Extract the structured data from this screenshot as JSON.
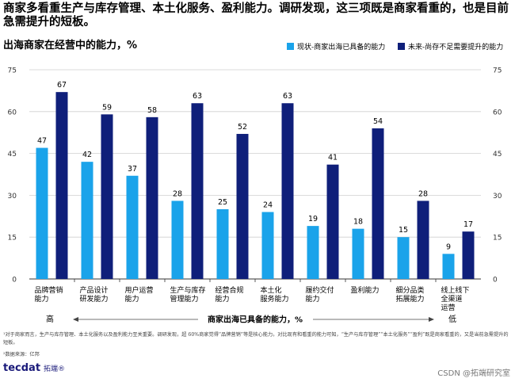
{
  "headline": "商家多看重生产与库存管理、本土化服务、盈利能力。调研发现，这三项既是商家看重的，也是目前急需提升的短板。",
  "subtitle": "出海商家在经营中的能力，%",
  "legend": {
    "current": "现状-商家出海已具备的能力",
    "future": "未来-尚存不足需要提升的能力"
  },
  "colors": {
    "current": "#1aa3ea",
    "future": "#0f1f7a",
    "grid": "#cfcfcf",
    "axis": "#333333"
  },
  "chart_data": {
    "type": "bar",
    "categories": [
      [
        "品牌营销",
        "能力"
      ],
      [
        "产品设计",
        "研发能力"
      ],
      [
        "用户运营",
        "能力"
      ],
      [
        "生产与库存",
        "管理能力"
      ],
      [
        "经营合规",
        "能力"
      ],
      [
        "本土化",
        "服务能力"
      ],
      [
        "履约交付",
        "能力"
      ],
      [
        "盈利能力"
      ],
      [
        "细分品类",
        "拓展能力"
      ],
      [
        "线上线下",
        "全渠道",
        "运营"
      ]
    ],
    "series": [
      {
        "name": "现状-商家出海已具备的能力",
        "key": "current",
        "values": [
          47,
          42,
          37,
          28,
          25,
          24,
          19,
          18,
          15,
          9
        ]
      },
      {
        "name": "未来-尚存不足需要提升的能力",
        "key": "future",
        "values": [
          67,
          59,
          58,
          63,
          52,
          63,
          41,
          54,
          28,
          17
        ]
      }
    ],
    "yticks": [
      0,
      15,
      30,
      45,
      60,
      75
    ],
    "ylim": [
      0,
      75
    ],
    "grid": true,
    "legend_position": "top-right",
    "xaxis_title": "商家出海已具备的能力，%",
    "xaxis_high": "高",
    "xaxis_low": "低"
  },
  "footnote": "¹对于商家而言，生产与库存管理、本土化服务以及盈利能力至关重要。调研发现，超 60%商家觉得“品牌营销”等是核心能力。对比现有和看重的能力可知，“生产与库存管理”“本土化服务”“盈利”既是商家看重的，又是当前急需提升的短板。",
  "source": "²数据来源：亿邦",
  "logo": {
    "mark": "tecdat",
    "cn": "拓端®"
  },
  "watermark": "CSDN @拓端研究室"
}
